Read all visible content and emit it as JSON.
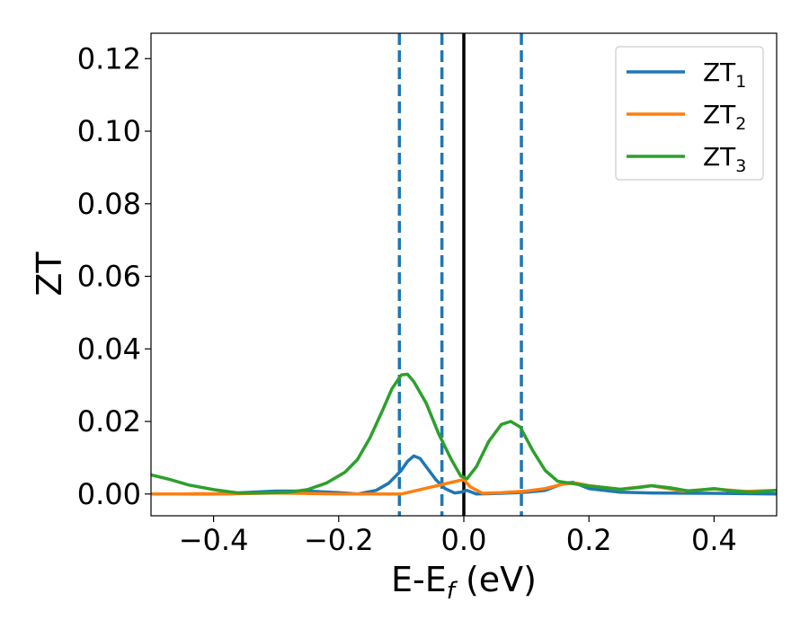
{
  "chart_data": {
    "type": "line",
    "xlabel": "E-E",
    "xlabel_subscript": "f",
    "xlabel_unit": " (eV)",
    "ylabel": "ZT",
    "xlim": [
      -0.5,
      0.5
    ],
    "ylim": [
      -0.006,
      0.127
    ],
    "xticks": [
      -0.4,
      -0.2,
      0.0,
      0.2,
      0.4
    ],
    "xtick_labels": [
      "−0.4",
      "−0.2",
      "0.0",
      "0.2",
      "0.4"
    ],
    "yticks": [
      0.0,
      0.02,
      0.04,
      0.06,
      0.08,
      0.1,
      0.12
    ],
    "ytick_labels": [
      "0.00",
      "0.02",
      "0.04",
      "0.06",
      "0.08",
      "0.10",
      "0.12"
    ],
    "grid": false,
    "legend_position": "top-right",
    "vertical_lines": [
      {
        "x": -0.103,
        "style": "dashed",
        "color": "#1f77b4"
      },
      {
        "x": -0.035,
        "style": "dashed",
        "color": "#1f77b4"
      },
      {
        "x": 0.0,
        "style": "solid",
        "color": "#000000"
      },
      {
        "x": 0.092,
        "style": "dashed",
        "color": "#1f77b4"
      }
    ],
    "series": [
      {
        "name": "ZT",
        "name_subscript": "1",
        "color": "#1f77b4",
        "points": [
          [
            -0.5,
            0.0
          ],
          [
            -0.4,
            0.0
          ],
          [
            -0.3,
            0.0008
          ],
          [
            -0.25,
            0.0008
          ],
          [
            -0.2,
            0.0004
          ],
          [
            -0.17,
            0.0
          ],
          [
            -0.14,
            0.001
          ],
          [
            -0.12,
            0.003
          ],
          [
            -0.1,
            0.0065
          ],
          [
            -0.09,
            0.009
          ],
          [
            -0.08,
            0.0105
          ],
          [
            -0.07,
            0.0098
          ],
          [
            -0.06,
            0.0075
          ],
          [
            -0.045,
            0.004
          ],
          [
            -0.03,
            0.0015
          ],
          [
            -0.015,
            0.0003
          ],
          [
            -0.005,
            0.0005
          ],
          [
            0.005,
            0.001
          ],
          [
            0.02,
            0.0
          ],
          [
            0.06,
            0.0002
          ],
          [
            0.1,
            0.0005
          ],
          [
            0.13,
            0.001
          ],
          [
            0.16,
            0.003
          ],
          [
            0.175,
            0.0032
          ],
          [
            0.2,
            0.0015
          ],
          [
            0.25,
            0.0005
          ],
          [
            0.3,
            0.0003
          ],
          [
            0.4,
            0.0002
          ],
          [
            0.5,
            0.0
          ]
        ]
      },
      {
        "name": "ZT",
        "name_subscript": "2",
        "color": "#ff7f0e",
        "points": [
          [
            -0.5,
            0.0
          ],
          [
            -0.45,
            0.0
          ],
          [
            -0.42,
            0.0001
          ],
          [
            -0.38,
            0.0
          ],
          [
            -0.3,
            0.0003
          ],
          [
            -0.2,
            0.0
          ],
          [
            -0.1,
            0.0
          ],
          [
            0.0,
            0.004
          ],
          [
            0.01,
            0.002
          ],
          [
            0.03,
            0.0002
          ],
          [
            0.06,
            0.0004
          ],
          [
            0.1,
            0.0008
          ],
          [
            0.13,
            0.0015
          ],
          [
            0.16,
            0.0028
          ],
          [
            0.18,
            0.003
          ],
          [
            0.2,
            0.0023
          ],
          [
            0.25,
            0.0013
          ],
          [
            0.3,
            0.0023
          ],
          [
            0.35,
            0.0008
          ],
          [
            0.4,
            0.0014
          ],
          [
            0.45,
            0.0007
          ],
          [
            0.5,
            0.001
          ]
        ]
      },
      {
        "name": "ZT",
        "name_subscript": "3",
        "color": "#2ca02c",
        "points": [
          [
            -0.5,
            0.0053
          ],
          [
            -0.47,
            0.004
          ],
          [
            -0.44,
            0.0025
          ],
          [
            -0.4,
            0.0012
          ],
          [
            -0.36,
            0.0003
          ],
          [
            -0.32,
            0.0003
          ],
          [
            -0.28,
            0.0005
          ],
          [
            -0.25,
            0.0012
          ],
          [
            -0.22,
            0.003
          ],
          [
            -0.19,
            0.006
          ],
          [
            -0.17,
            0.0095
          ],
          [
            -0.15,
            0.0155
          ],
          [
            -0.13,
            0.023
          ],
          [
            -0.115,
            0.029
          ],
          [
            -0.1,
            0.0328
          ],
          [
            -0.09,
            0.033
          ],
          [
            -0.08,
            0.031
          ],
          [
            -0.06,
            0.025
          ],
          [
            -0.04,
            0.0165
          ],
          [
            -0.02,
            0.0095
          ],
          [
            -0.005,
            0.005
          ],
          [
            0.005,
            0.0042
          ],
          [
            0.02,
            0.0075
          ],
          [
            0.04,
            0.0145
          ],
          [
            0.06,
            0.0192
          ],
          [
            0.075,
            0.02
          ],
          [
            0.09,
            0.0185
          ],
          [
            0.11,
            0.012
          ],
          [
            0.13,
            0.0065
          ],
          [
            0.15,
            0.0035
          ],
          [
            0.17,
            0.003
          ],
          [
            0.2,
            0.0022
          ],
          [
            0.25,
            0.0013
          ],
          [
            0.28,
            0.0018
          ],
          [
            0.3,
            0.0023
          ],
          [
            0.33,
            0.0017
          ],
          [
            0.36,
            0.0008
          ],
          [
            0.4,
            0.0015
          ],
          [
            0.43,
            0.0008
          ],
          [
            0.46,
            0.0005
          ],
          [
            0.5,
            0.001
          ]
        ]
      }
    ]
  }
}
